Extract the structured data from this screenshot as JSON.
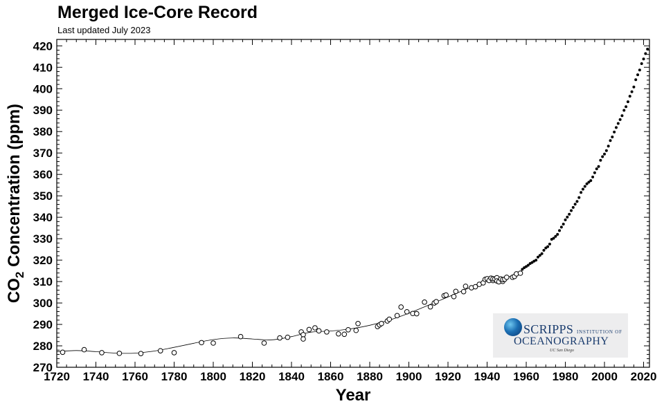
{
  "header": {
    "title": "Merged Ice-Core Record",
    "subtitle": "Last updated July 2023"
  },
  "logo": {
    "line1_main": "SCRIPPS",
    "line1_small": "INSTITUTION OF",
    "line2": "OCEANOGRAPHY",
    "line3": "UC San Diego",
    "globe_color": "#1c6fb3"
  },
  "chart_data": {
    "type": "scatter",
    "title": "Merged Ice-Core Record",
    "subtitle": "Last updated July 2023",
    "xlabel": "Year",
    "ylabel": "CO2 Concentration (ppm)",
    "ylabel_main": "CO",
    "ylabel_sub": "2",
    "ylabel_rest": " Concentration (ppm)",
    "xlim": [
      1720,
      2023
    ],
    "ylim": [
      270,
      423
    ],
    "xticks": [
      1720,
      1740,
      1760,
      1780,
      1800,
      1820,
      1840,
      1860,
      1880,
      1900,
      1920,
      1940,
      1960,
      1980,
      2000,
      2020
    ],
    "yticks": [
      270,
      280,
      290,
      300,
      310,
      320,
      330,
      340,
      350,
      360,
      370,
      380,
      390,
      400,
      410,
      420
    ],
    "grid": false,
    "series": [
      {
        "marker": "open-circle",
        "x": [
          1723,
          1734,
          1743,
          1752,
          1763,
          1773,
          1780,
          1794,
          1800,
          1814,
          1826,
          1834,
          1838,
          1845,
          1846,
          1846,
          1849,
          1852,
          1854,
          1858,
          1864,
          1867,
          1869,
          1873,
          1874,
          1884,
          1885,
          1886,
          1889,
          1890,
          1894,
          1896,
          1899,
          1902,
          1904,
          1908,
          1911,
          1913,
          1914,
          1918,
          1919,
          1923,
          1924,
          1928,
          1929,
          1932,
          1934,
          1936,
          1938,
          1939,
          1940,
          1941,
          1942,
          1943,
          1943,
          1944,
          1945,
          1945,
          1946,
          1947,
          1948,
          1948,
          1949,
          1950,
          1953,
          1954,
          1955,
          1957
        ],
        "y": [
          277.0,
          278.2,
          276.8,
          276.5,
          276.4,
          277.7,
          276.8,
          281.5,
          281.3,
          284.3,
          281.3,
          283.7,
          284.0,
          286.5,
          285.2,
          283.2,
          287.6,
          288.4,
          287.0,
          286.5,
          285.6,
          285.4,
          287.5,
          287.2,
          290.4,
          289.0,
          289.8,
          290.4,
          291.6,
          292.4,
          294.1,
          298.1,
          295.9,
          295.1,
          295.0,
          300.4,
          298.2,
          300.0,
          300.6,
          303.4,
          303.7,
          303.0,
          305.4,
          305.3,
          307.8,
          307.1,
          307.6,
          308.7,
          309.4,
          311.0,
          311.3,
          310.5,
          311.6,
          310.5,
          311.3,
          311.2,
          311.8,
          310.3,
          309.9,
          311.2,
          310.1,
          310.9,
          311.1,
          312.0,
          312.0,
          312.4,
          313.6,
          313.9
        ]
      },
      {
        "marker": "filled-dot",
        "x": [
          1958,
          1959,
          1960,
          1961,
          1962,
          1963,
          1964,
          1965,
          1966,
          1967,
          1968,
          1969,
          1970,
          1971,
          1972,
          1973,
          1974,
          1975,
          1976,
          1977,
          1978,
          1979,
          1980,
          1981,
          1982,
          1983,
          1984,
          1985,
          1986,
          1987,
          1988,
          1989,
          1990,
          1991,
          1992,
          1993,
          1994,
          1995,
          1996,
          1997,
          1998,
          1999,
          2000,
          2001,
          2002,
          2003,
          2004,
          2005,
          2006,
          2007,
          2008,
          2009,
          2010,
          2011,
          2012,
          2013,
          2014,
          2015,
          2016,
          2017,
          2018,
          2019,
          2020,
          2021,
          2022
        ],
        "y": [
          315.7,
          316.5,
          317.0,
          317.6,
          318.4,
          318.9,
          319.5,
          320.0,
          321.4,
          322.2,
          323.0,
          324.6,
          325.7,
          326.3,
          327.5,
          329.7,
          330.2,
          331.1,
          332.0,
          333.8,
          335.4,
          336.8,
          338.8,
          340.1,
          341.4,
          343.1,
          344.6,
          346.1,
          347.4,
          349.2,
          351.6,
          353.1,
          354.4,
          355.6,
          356.4,
          357.1,
          358.8,
          360.8,
          362.6,
          363.7,
          366.6,
          368.3,
          369.5,
          371.1,
          373.2,
          375.8,
          377.5,
          379.8,
          381.9,
          383.8,
          385.6,
          387.4,
          389.9,
          391.6,
          393.9,
          396.5,
          398.6,
          400.8,
          404.2,
          406.5,
          408.7,
          411.7,
          413.9,
          416.4,
          418.5
        ]
      },
      {
        "marker": "smooth-line",
        "x": [
          1720,
          1730,
          1740,
          1750,
          1760,
          1770,
          1780,
          1790,
          1800,
          1810,
          1820,
          1830,
          1840,
          1850,
          1860,
          1870,
          1880,
          1890,
          1900,
          1910,
          1920,
          1930,
          1940,
          1950,
          1958
        ],
        "y": [
          277.3,
          277.8,
          277.3,
          276.6,
          276.6,
          277.6,
          279.3,
          281.2,
          282.9,
          283.7,
          283.2,
          282.8,
          284.3,
          286.4,
          286.9,
          287.9,
          289.6,
          292.0,
          295.2,
          299.0,
          302.8,
          306.7,
          310.4,
          311.9,
          315.3
        ]
      }
    ]
  }
}
